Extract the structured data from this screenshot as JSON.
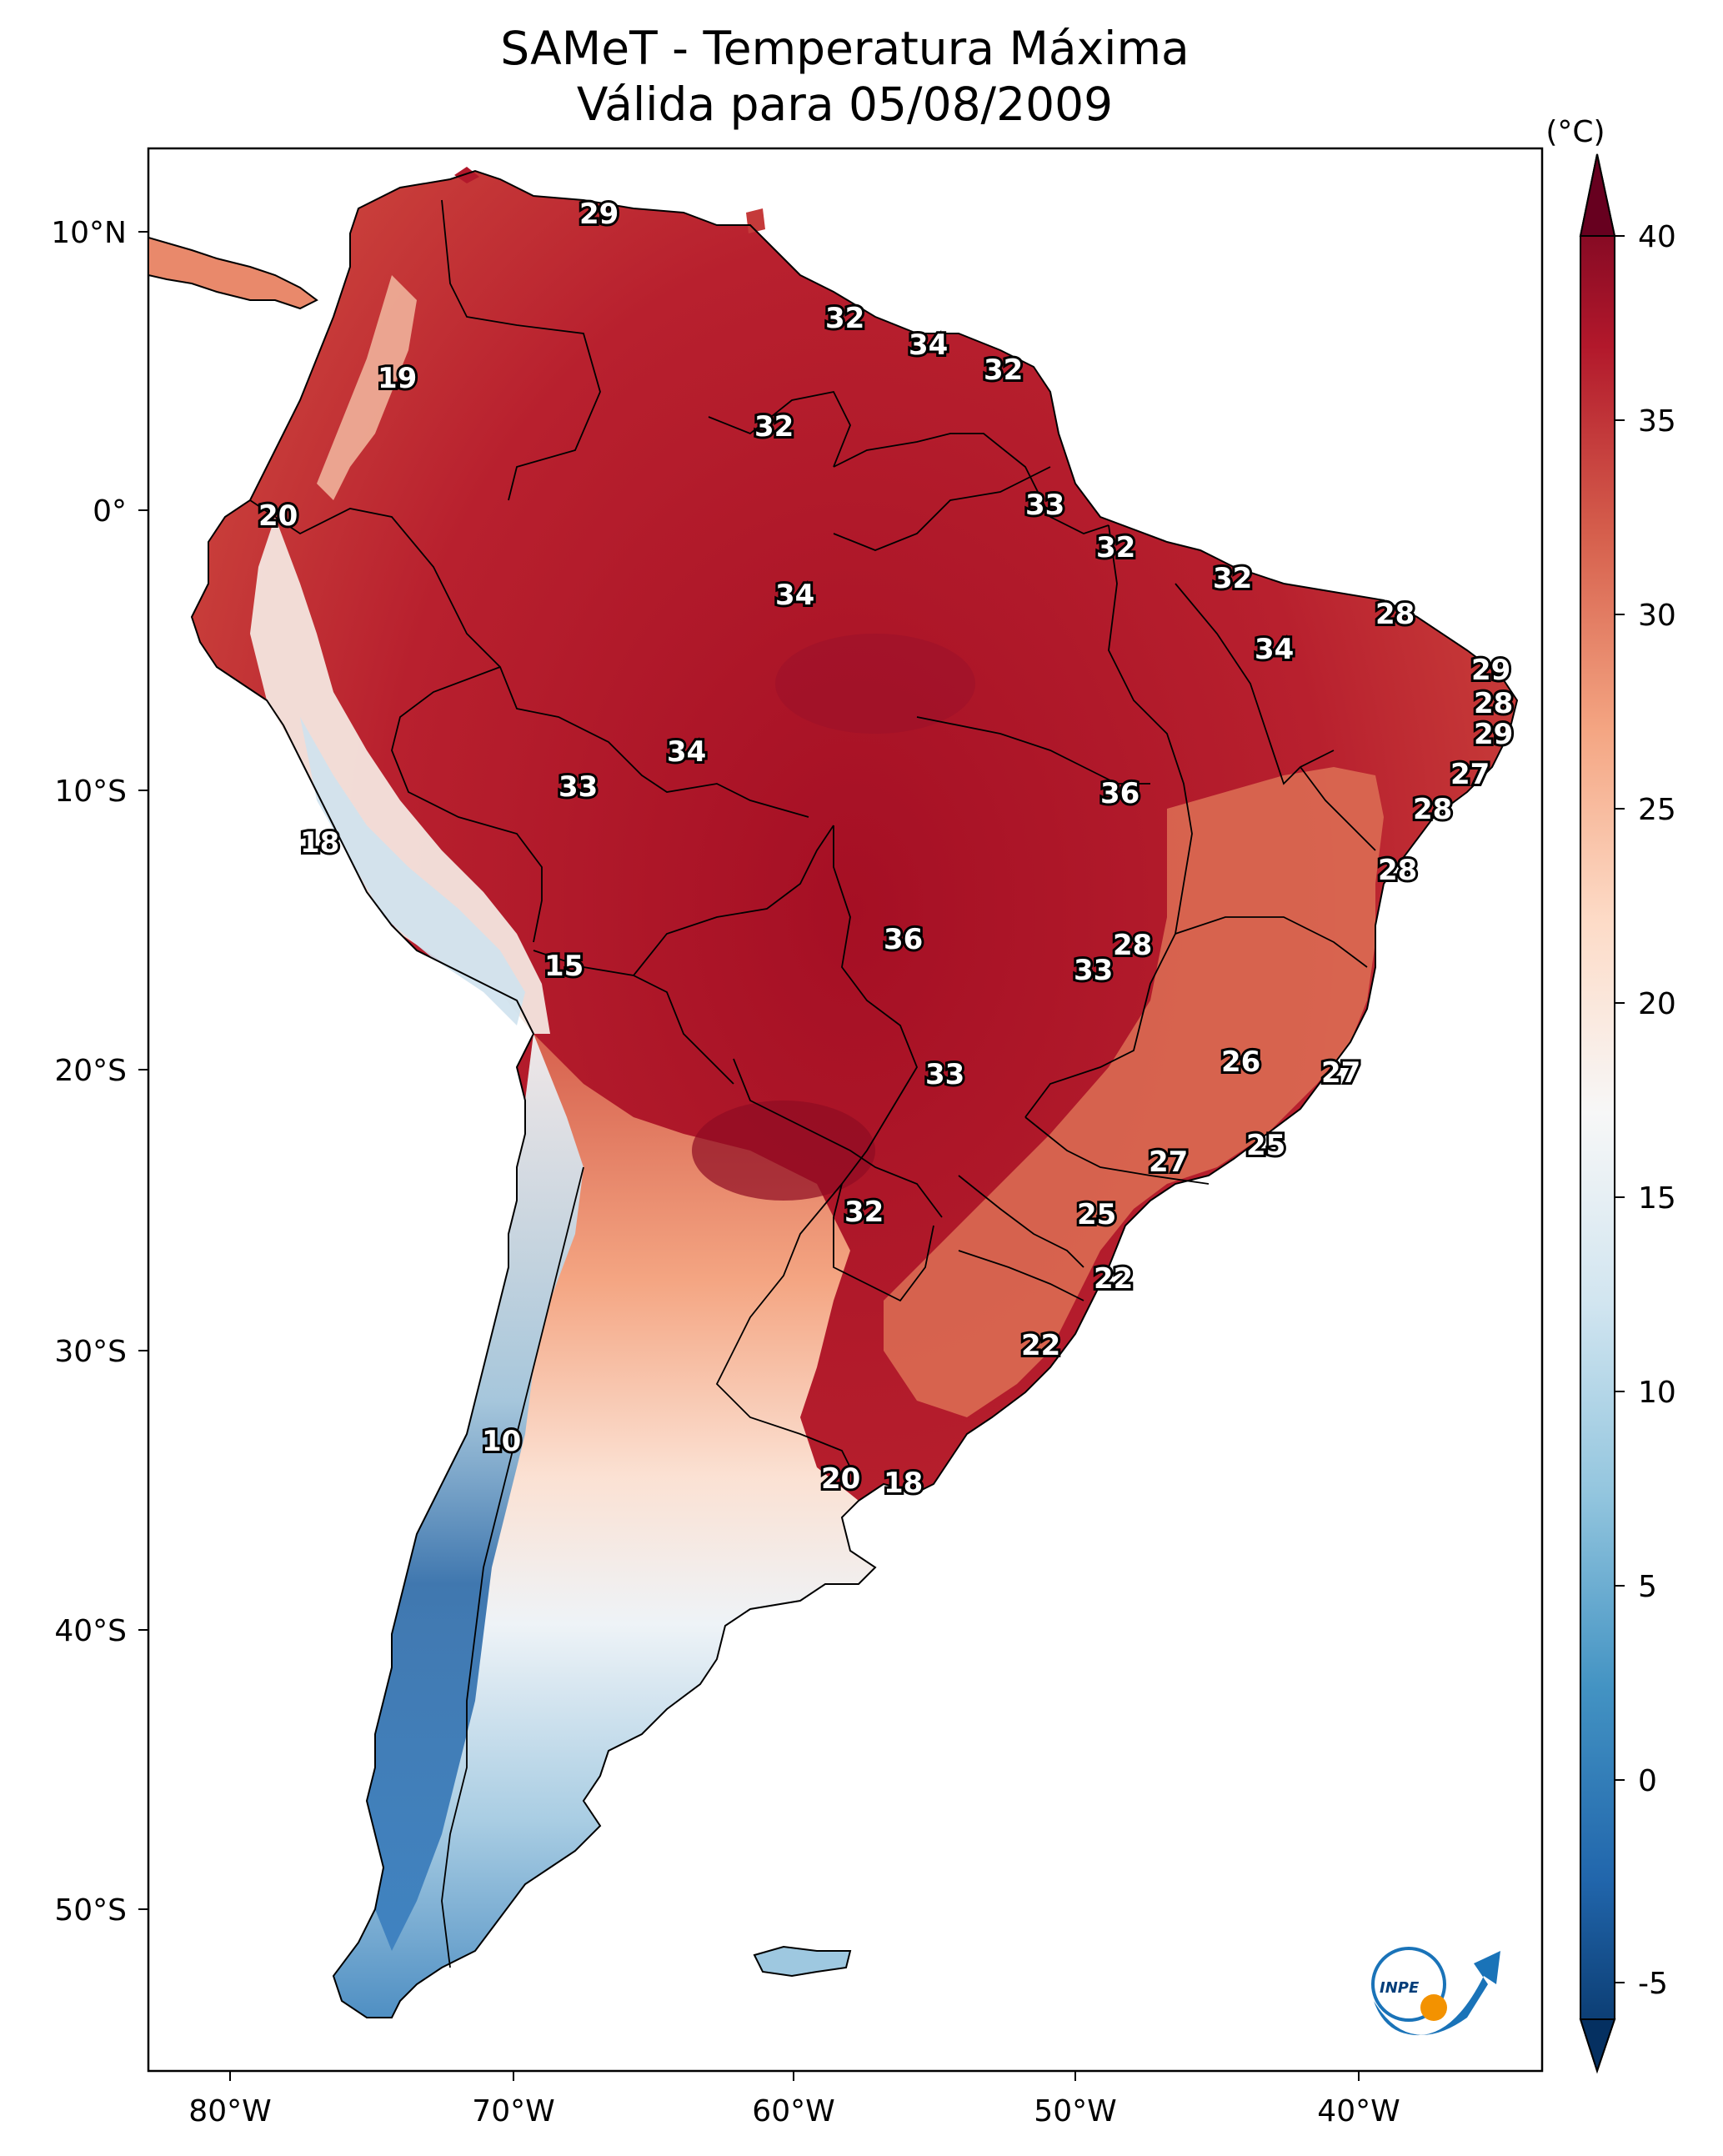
{
  "title": {
    "line1": "SAMeT - Temperatura Máxima",
    "line2": "Válida para 05/08/2009"
  },
  "axes": {
    "lon_ticks": [
      "80°W",
      "70°W",
      "60°W",
      "50°W",
      "40°W"
    ],
    "lat_ticks": [
      "10°N",
      "0°",
      "10°S",
      "20°S",
      "30°S",
      "40°S",
      "50°S"
    ]
  },
  "colorbar": {
    "unit": "(°C)",
    "ticks": [
      "40",
      "35",
      "30",
      "25",
      "20",
      "15",
      "10",
      "5",
      "0",
      "-5"
    ],
    "colors": [
      "#67001f",
      "#b2182b",
      "#d6604d",
      "#f4a582",
      "#fddbc7",
      "#f7f7f7",
      "#d1e5f0",
      "#92c5de",
      "#4393c3",
      "#2166ac",
      "#053061"
    ]
  },
  "logo": {
    "text": "INPE"
  },
  "contour_labels": [
    {
      "id": "a1",
      "value": "29"
    },
    {
      "id": "a2",
      "value": "32"
    },
    {
      "id": "a3",
      "value": "34"
    },
    {
      "id": "a4",
      "value": "32"
    },
    {
      "id": "a5",
      "value": "19"
    },
    {
      "id": "a6",
      "value": "32"
    },
    {
      "id": "a7",
      "value": "33"
    },
    {
      "id": "a8",
      "value": "20"
    },
    {
      "id": "a9",
      "value": "32"
    },
    {
      "id": "a10",
      "value": "34"
    },
    {
      "id": "a11",
      "value": "32"
    },
    {
      "id": "a12",
      "value": "28"
    },
    {
      "id": "a13",
      "value": "34"
    },
    {
      "id": "a14",
      "value": "29"
    },
    {
      "id": "a15",
      "value": "28"
    },
    {
      "id": "a16",
      "value": "29"
    },
    {
      "id": "a17",
      "value": "34"
    },
    {
      "id": "a18",
      "value": "33"
    },
    {
      "id": "a19",
      "value": "27"
    },
    {
      "id": "a20",
      "value": "36"
    },
    {
      "id": "a21",
      "value": "28"
    },
    {
      "id": "a22",
      "value": "18"
    },
    {
      "id": "a23",
      "value": "28"
    },
    {
      "id": "a24",
      "value": "36"
    },
    {
      "id": "a25",
      "value": "28"
    },
    {
      "id": "a26",
      "value": "15"
    },
    {
      "id": "a27",
      "value": "33"
    },
    {
      "id": "a28",
      "value": "26"
    },
    {
      "id": "a29",
      "value": "27"
    },
    {
      "id": "a30",
      "value": "33"
    },
    {
      "id": "a31",
      "value": "25"
    },
    {
      "id": "a32",
      "value": "27"
    },
    {
      "id": "a33",
      "value": "32"
    },
    {
      "id": "a34",
      "value": "25"
    },
    {
      "id": "a35",
      "value": "22"
    },
    {
      "id": "a36",
      "value": "22"
    },
    {
      "id": "a37",
      "value": "10"
    },
    {
      "id": "a38",
      "value": "20"
    },
    {
      "id": "a39",
      "value": "18"
    }
  ]
}
